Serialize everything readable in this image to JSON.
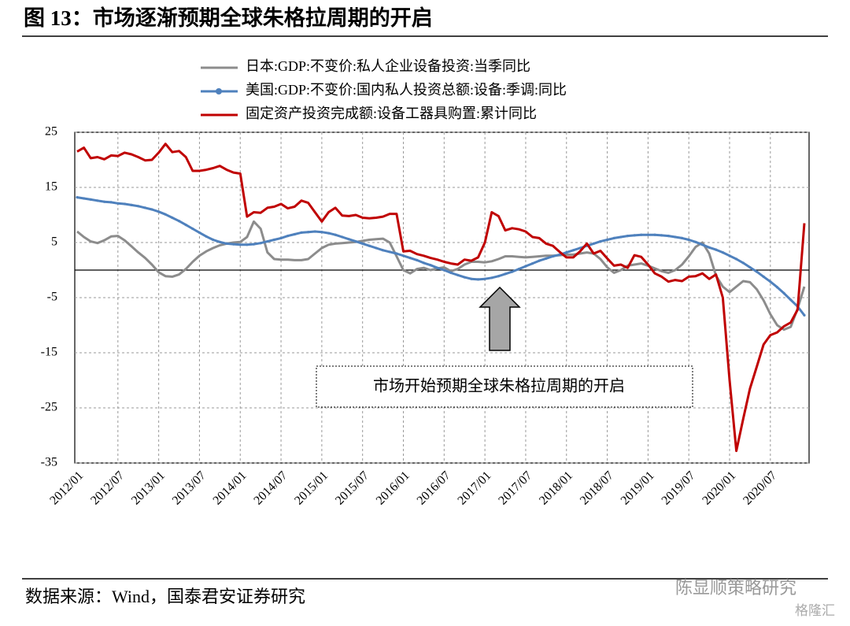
{
  "header": {
    "title": "图 13：市场逐渐预期全球朱格拉周期的开启"
  },
  "chart_data": {
    "type": "line",
    "annotation": "市场开始预期全球朱格拉周期的开启",
    "categories": [
      "2012/01",
      null,
      null,
      null,
      null,
      null,
      "2012/07",
      null,
      null,
      null,
      null,
      null,
      "2013/01",
      null,
      null,
      null,
      null,
      null,
      "2013/07",
      null,
      null,
      null,
      null,
      null,
      "2014/01",
      null,
      null,
      null,
      null,
      null,
      "2014/07",
      null,
      null,
      null,
      null,
      null,
      "2015/01",
      null,
      null,
      null,
      null,
      null,
      "2015/07",
      null,
      null,
      null,
      null,
      null,
      "2016/01",
      null,
      null,
      null,
      null,
      null,
      "2016/07",
      null,
      null,
      null,
      null,
      null,
      "2017/01",
      null,
      null,
      null,
      null,
      null,
      "2017/07",
      null,
      null,
      null,
      null,
      null,
      "2018/01",
      null,
      null,
      null,
      null,
      null,
      "2018/07",
      null,
      null,
      null,
      null,
      null,
      "2019/01",
      null,
      null,
      null,
      null,
      null,
      "2019/07",
      null,
      null,
      null,
      null,
      null,
      "2020/01",
      null,
      null,
      null,
      null,
      null,
      "2020/07",
      null,
      null,
      null,
      null,
      null
    ],
    "series": [
      {
        "name": "日本:GDP:不变价:私人企业设备投资:当季同比",
        "color": "#8c8c8c",
        "marker": false,
        "values": [
          7.0,
          6.0,
          5.2,
          4.9,
          5.4,
          6.1,
          6.2,
          5.4,
          4.3,
          3.2,
          2.2,
          1.0,
          -0.4,
          -1.1,
          -1.2,
          -0.8,
          0.2,
          1.5,
          2.6,
          3.4,
          4.0,
          4.5,
          4.8,
          5.0,
          5.1,
          6.0,
          8.8,
          7.5,
          3.2,
          2.0,
          1.9,
          1.9,
          1.8,
          1.8,
          2.0,
          3.0,
          4.0,
          4.6,
          4.8,
          4.9,
          5.0,
          5.1,
          5.3,
          5.5,
          5.6,
          5.7,
          5.0,
          2.5,
          0.0,
          -0.6,
          0.2,
          0.4,
          0.0,
          0.3,
          0.5,
          -0.2,
          0.2,
          1.0,
          1.5,
          1.5,
          1.4,
          1.6,
          2.0,
          2.5,
          2.5,
          2.4,
          2.3,
          2.4,
          2.5,
          2.6,
          2.6,
          2.7,
          2.8,
          2.8,
          3.0,
          3.2,
          3.0,
          2.0,
          0.5,
          -0.5,
          0.0,
          0.8,
          1.0,
          1.2,
          0.8,
          0.3,
          -0.2,
          -0.5,
          0.0,
          1.0,
          2.5,
          4.2,
          5.0,
          3.0,
          -1.0,
          -3.0,
          -4.0,
          -3.0,
          -2.0,
          -2.2,
          -3.5,
          -5.5,
          -8.0,
          -10.0,
          -10.8,
          -10.3,
          -7.0,
          -3.0
        ]
      },
      {
        "name": "美国:GDP:不变价:国内私人投资总额:设备:季调:同比",
        "color": "#4f81bd",
        "marker": true,
        "values": [
          13.2,
          13.0,
          12.8,
          12.6,
          12.4,
          12.3,
          12.1,
          12.0,
          11.8,
          11.6,
          11.3,
          11.0,
          10.6,
          10.1,
          9.5,
          8.9,
          8.2,
          7.5,
          6.8,
          6.1,
          5.5,
          5.1,
          4.8,
          4.7,
          4.6,
          4.6,
          4.7,
          4.9,
          5.2,
          5.5,
          5.8,
          6.2,
          6.5,
          6.8,
          6.9,
          7.0,
          6.9,
          6.7,
          6.4,
          6.0,
          5.6,
          5.2,
          4.8,
          4.4,
          4.0,
          3.6,
          3.3,
          3.0,
          2.6,
          2.2,
          1.8,
          1.3,
          0.9,
          0.4,
          0.0,
          -0.5,
          -0.9,
          -1.3,
          -1.6,
          -1.7,
          -1.6,
          -1.4,
          -1.1,
          -0.7,
          -0.3,
          0.2,
          0.7,
          1.2,
          1.7,
          2.1,
          2.5,
          2.8,
          3.2,
          3.6,
          4.0,
          4.4,
          4.8,
          5.2,
          5.5,
          5.8,
          6.0,
          6.2,
          6.3,
          6.4,
          6.4,
          6.4,
          6.3,
          6.2,
          6.0,
          5.8,
          5.5,
          5.1,
          4.6,
          4.1,
          3.7,
          3.2,
          2.6,
          2.0,
          1.3,
          0.5,
          -0.3,
          -1.2,
          -2.1,
          -3.1,
          -4.2,
          -5.4,
          -6.6,
          -8.2
        ]
      },
      {
        "name": "固定资产投资完成额:设备工器具购置:累计同比",
        "color": "#c00000",
        "marker": false,
        "values": [
          21.5,
          22.2,
          20.3,
          20.5,
          20.1,
          20.8,
          20.7,
          21.3,
          21.0,
          20.5,
          19.9,
          20.0,
          21.3,
          22.9,
          21.4,
          21.6,
          20.5,
          18.0,
          18.0,
          18.2,
          18.5,
          18.9,
          18.2,
          17.7,
          17.5,
          9.7,
          10.5,
          10.4,
          11.3,
          11.5,
          12.0,
          11.2,
          11.5,
          12.6,
          12.2,
          10.5,
          8.8,
          10.5,
          11.3,
          9.9,
          9.8,
          10.0,
          9.5,
          9.4,
          9.5,
          9.7,
          10.2,
          10.2,
          3.4,
          3.5,
          2.9,
          2.6,
          2.2,
          1.9,
          1.5,
          1.2,
          1.0,
          1.9,
          1.7,
          2.3,
          5.0,
          10.5,
          9.8,
          7.2,
          7.6,
          7.4,
          7.0,
          6.0,
          5.8,
          4.8,
          4.4,
          3.3,
          2.3,
          2.3,
          3.4,
          4.8,
          3.0,
          3.5,
          2.1,
          0.8,
          1.0,
          0.4,
          2.7,
          2.4,
          1.0,
          -0.6,
          -1.2,
          -2.1,
          -1.8,
          -2.0,
          -1.2,
          -1.1,
          -0.6,
          -1.6,
          -0.8,
          -5.0,
          -20.0,
          -32.8,
          -27.0,
          -21.5,
          -17.5,
          -13.5,
          -11.8,
          -11.3,
          -10.2,
          -9.5,
          -7.2,
          8.5
        ]
      }
    ],
    "ylim": [
      -35,
      25
    ],
    "yticks": [
      25,
      15,
      5,
      -5,
      -15,
      -25,
      -35
    ],
    "grid": true
  },
  "footer": {
    "source": "数据来源：Wind，国泰君安证券研究",
    "watermark": "陈显顺策略研究",
    "logo": "格隆汇"
  }
}
